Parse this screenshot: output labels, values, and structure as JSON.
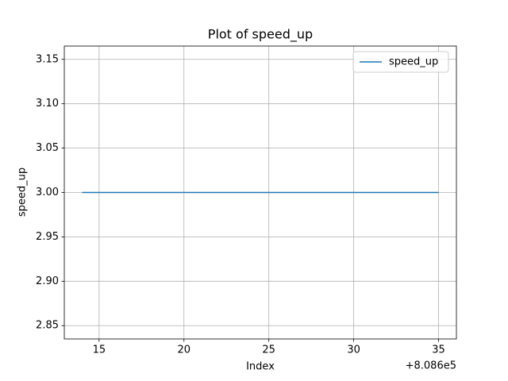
{
  "chart_data": {
    "type": "line",
    "title": "Plot of speed_up",
    "xlabel": "Index",
    "ylabel": "speed_up",
    "x_offset_label": "+8.086e5",
    "x": [
      808614,
      808615,
      808616,
      808617,
      808618,
      808619,
      808620,
      808621,
      808622,
      808623,
      808624,
      808625,
      808626,
      808627,
      808628,
      808629,
      808630,
      808631,
      808632,
      808633,
      808634,
      808635
    ],
    "series": [
      {
        "name": "speed_up",
        "color": "#1f77b4",
        "values": [
          3,
          3,
          3,
          3,
          3,
          3,
          3,
          3,
          3,
          3,
          3,
          3,
          3,
          3,
          3,
          3,
          3,
          3,
          3,
          3,
          3,
          3
        ]
      }
    ],
    "xlim": [
      808612.95,
      808636.05
    ],
    "xticks": [
      {
        "value": 808615,
        "label": "15"
      },
      {
        "value": 808620,
        "label": "20"
      },
      {
        "value": 808625,
        "label": "25"
      },
      {
        "value": 808630,
        "label": "30"
      },
      {
        "value": 808635,
        "label": "35"
      }
    ],
    "ylim": [
      2.835,
      3.165
    ],
    "yticks": [
      2.85,
      {
        "value": 2.9,
        "label": "2.90"
      },
      2.95,
      {
        "value": 3,
        "label": "3.00"
      },
      3.05,
      {
        "value": 3.1,
        "label": "3.10"
      },
      3.15
    ],
    "grid": true,
    "legend": "upper right"
  }
}
